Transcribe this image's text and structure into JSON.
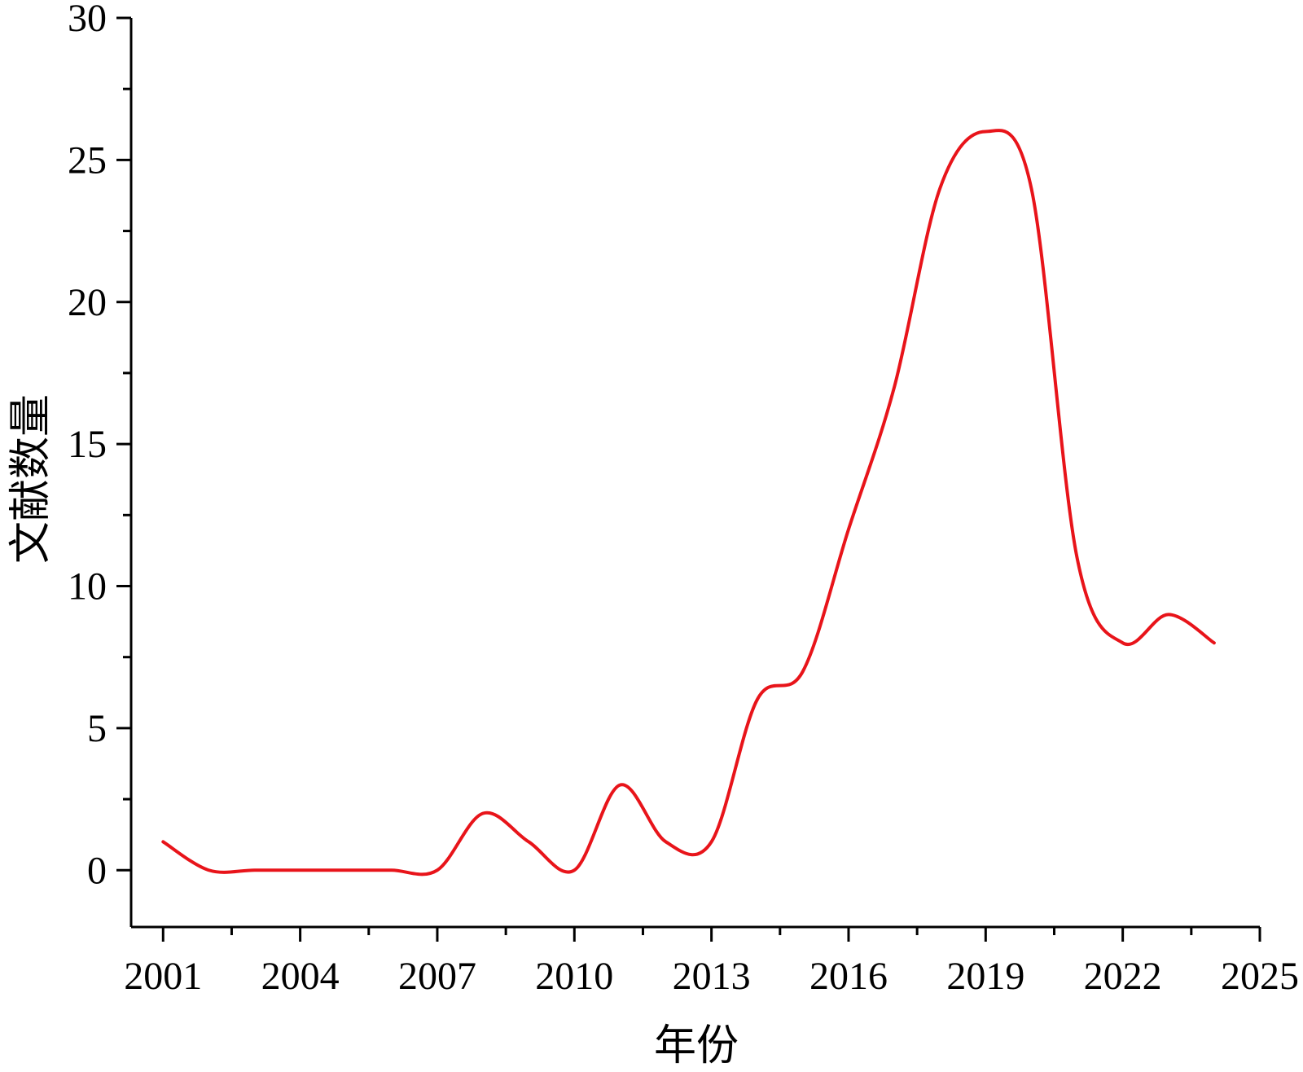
{
  "chart_data": {
    "type": "line",
    "title": "",
    "xlabel": "年份",
    "ylabel": "文献数量",
    "xlim": [
      2000.3,
      2025
    ],
    "ylim": [
      -2,
      30
    ],
    "xticks": [
      2001,
      2004,
      2007,
      2010,
      2013,
      2016,
      2019,
      2022,
      2025
    ],
    "yticks": [
      0,
      5,
      10,
      15,
      20,
      25,
      30
    ],
    "grid": false,
    "legend": "none",
    "line_color": "#e8141a",
    "series": [
      {
        "x": [
          2001,
          2002,
          2003,
          2004,
          2005,
          2006,
          2007,
          2008,
          2009,
          2010,
          2011,
          2012,
          2013,
          2014,
          2015,
          2016,
          2017,
          2018,
          2019,
          2020,
          2021,
          2022,
          2023,
          2024
        ],
        "values": [
          1,
          0,
          0,
          0,
          0,
          0,
          0,
          2,
          1,
          0,
          3,
          1,
          1,
          6,
          7,
          12,
          17,
          24,
          26,
          24,
          11,
          8,
          9,
          8
        ]
      }
    ]
  }
}
